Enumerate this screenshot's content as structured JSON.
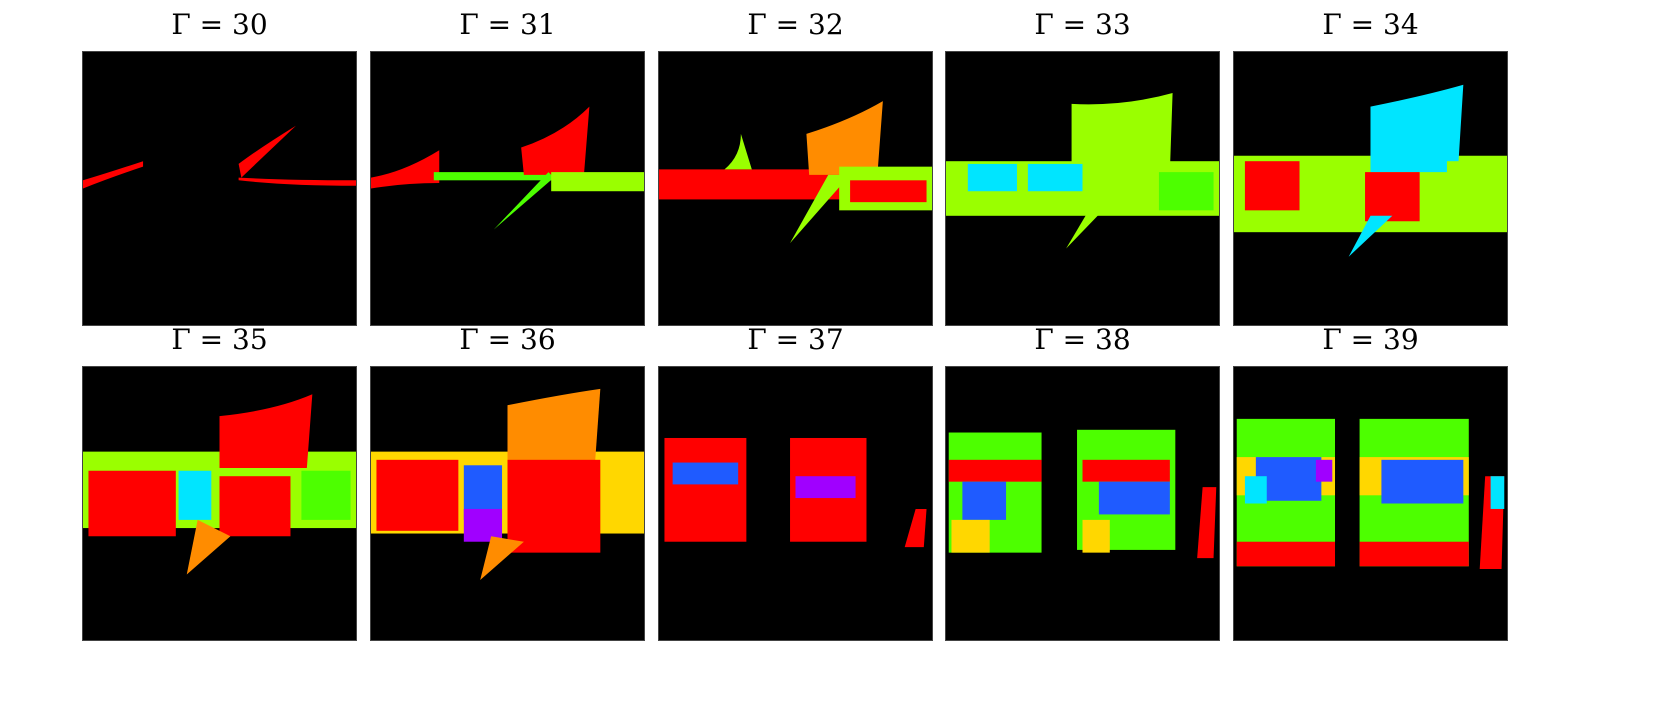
{
  "figure": {
    "panels": [
      {
        "title": "Γ = 30"
      },
      {
        "title": "Γ = 31"
      },
      {
        "title": "Γ = 32"
      },
      {
        "title": "Γ = 33"
      },
      {
        "title": "Γ = 34"
      },
      {
        "title": "Γ = 35"
      },
      {
        "title": "Γ = 36"
      },
      {
        "title": "Γ = 37"
      },
      {
        "title": "Γ = 38"
      },
      {
        "title": "Γ = 39"
      }
    ],
    "colors": {
      "background": "#000000",
      "red": "#ff0000",
      "green": "#4dff00",
      "lime": "#9aff00",
      "yellow": "#ffd700",
      "cyan": "#00e5ff",
      "blue": "#1f5bff",
      "purple": "#a000ff",
      "orange": "#ff8c00"
    }
  }
}
